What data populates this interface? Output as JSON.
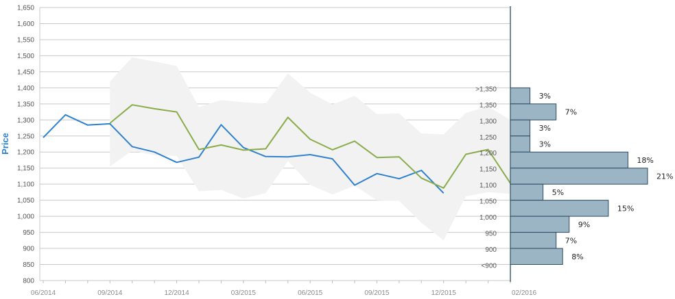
{
  "chart_data": {
    "type": "line",
    "ylabel": "Price",
    "xlabel": "",
    "title": "",
    "ylim": [
      800,
      1650
    ],
    "y_ticks": [
      800,
      850,
      900,
      950,
      1000,
      1050,
      1100,
      1150,
      1200,
      1250,
      1300,
      1350,
      1400,
      1450,
      1500,
      1550,
      1600,
      1650
    ],
    "y_tick_labels": [
      "800",
      "850",
      "900",
      "950",
      "1,000",
      "1,050",
      "1,100",
      "1,150",
      "1,200",
      "1,250",
      "1,300",
      "1,350",
      "1,400",
      "1,450",
      "1,500",
      "1,550",
      "1,600",
      "1,650"
    ],
    "x_ticks": [
      "06/2014",
      "09/2014",
      "12/2014",
      "03/2015",
      "06/2015",
      "09/2015",
      "12/2015",
      "02/2016"
    ],
    "x_tick_months": [
      0,
      3,
      6,
      9,
      12,
      15,
      18,
      20
    ],
    "grid": true,
    "series": [
      {
        "color": "#2e80d0",
        "months": [
          0,
          1,
          2,
          3,
          4,
          5,
          6,
          7,
          8,
          9,
          10,
          11,
          12,
          13,
          14,
          15,
          16,
          17,
          18
        ],
        "values": [
          1245,
          1316,
          1284,
          1288,
          1217,
          1200,
          1168,
          1184,
          1285,
          1214,
          1186,
          1185,
          1192,
          1179,
          1097,
          1133,
          1117,
          1143,
          1072
        ]
      },
      {
        "color": "#8aab4a",
        "months": [
          3,
          4,
          5,
          6,
          7,
          8,
          9,
          10,
          11,
          12,
          13,
          14,
          15,
          16,
          17,
          18,
          19,
          20,
          21
        ],
        "values": [
          1290,
          1347,
          1335,
          1325,
          1208,
          1222,
          1206,
          1210,
          1308,
          1240,
          1207,
          1234,
          1183,
          1185,
          1119,
          1088,
          1193,
          1208,
          1103
        ]
      }
    ],
    "band": {
      "color": "#f2f2f2",
      "months": [
        3,
        4,
        5,
        6,
        7,
        8,
        9,
        10,
        11,
        12,
        13,
        14,
        15,
        16,
        17,
        18,
        19,
        20,
        21
      ],
      "upper": [
        1420,
        1495,
        1482,
        1468,
        1340,
        1362,
        1355,
        1350,
        1445,
        1385,
        1348,
        1375,
        1318,
        1320,
        1258,
        1255,
        1322,
        1342,
        1300
      ],
      "lower": [
        1155,
        1205,
        1190,
        1188,
        1078,
        1082,
        1055,
        1072,
        1172,
        1098,
        1068,
        1095,
        1050,
        1048,
        980,
        925,
        1062,
        1075,
        1070
      ]
    },
    "histogram": {
      "color": "#9cb5c4",
      "border": "#2a4a62",
      "buckets": [
        {
          "label": ">1,350",
          "value": 3,
          "display": "3%",
          "low": 1350,
          "high": 1400
        },
        {
          "label": "1,350",
          "value": 7,
          "display": "7%",
          "low": 1300,
          "high": 1350
        },
        {
          "label": "1,300",
          "value": 3,
          "display": "3%",
          "low": 1250,
          "high": 1300
        },
        {
          "label": "1,250",
          "value": 3,
          "display": "3%",
          "low": 1200,
          "high": 1250
        },
        {
          "label": "1,200",
          "value": 18,
          "display": "18%",
          "low": 1150,
          "high": 1200
        },
        {
          "label": "1,150",
          "value": 21,
          "display": "21%",
          "low": 1100,
          "high": 1150
        },
        {
          "label": "1,100",
          "value": 5,
          "display": "5%",
          "low": 1050,
          "high": 1100
        },
        {
          "label": "1,050",
          "value": 15,
          "display": "15%",
          "low": 1000,
          "high": 1050
        },
        {
          "label": "1,000",
          "value": 9,
          "display": "9%",
          "low": 950,
          "high": 1000
        },
        {
          "label": "950",
          "value": 7,
          "display": "7%",
          "low": 900,
          "high": 950
        },
        {
          "label": "900",
          "value": 8,
          "display": "8%",
          "low": 850,
          "high": 900
        },
        {
          "label": "<900",
          "value": 0,
          "display": "",
          "low": 800,
          "high": 850
        }
      ]
    }
  }
}
